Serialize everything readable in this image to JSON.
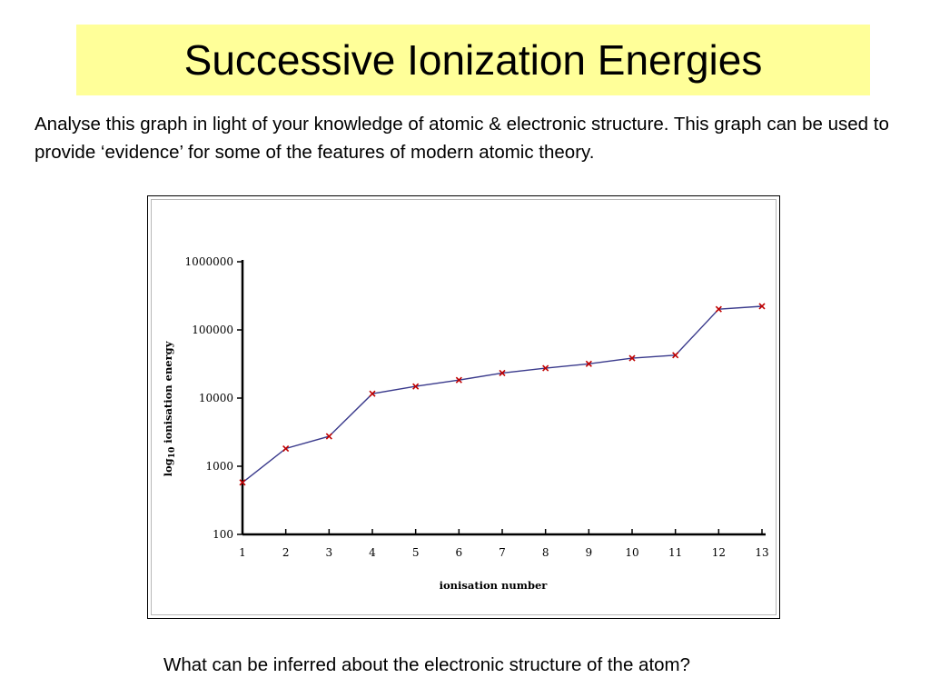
{
  "slide": {
    "title": "Successive Ionization Energies",
    "intro_text": "Analyse this graph in light of your knowledge of atomic & electronic structure. This graph can be used to provide ‘evidence’ for some of the features of modern atomic theory.",
    "question_text": "What can be inferred about the electronic structure of the atom?",
    "colors": {
      "title_background": "#ffff99",
      "line": "#3a3a8c",
      "marker": "#c00000"
    }
  },
  "chart_data": {
    "type": "line",
    "title": "",
    "xlabel": "ionisation number",
    "ylabel": "log₁₀ ionisation energy",
    "ylabel_parts": {
      "prefix": "log",
      "subscript": "10",
      "suffix": " ionisation energy"
    },
    "y_scale": "log",
    "ylim": [
      100,
      1000000
    ],
    "y_ticks": [
      100,
      1000,
      10000,
      100000,
      1000000
    ],
    "y_tick_labels": [
      "100",
      "1000",
      "10000",
      "100000",
      "1000000"
    ],
    "x": [
      1,
      2,
      3,
      4,
      5,
      6,
      7,
      8,
      9,
      10,
      11,
      12,
      13
    ],
    "x_tick_labels": [
      "1",
      "2",
      "3",
      "4",
      "5",
      "6",
      "7",
      "8",
      "9",
      "10",
      "11",
      "12",
      "13"
    ],
    "xlim": [
      1,
      13
    ],
    "grid": false,
    "legend": "none",
    "series": [
      {
        "values": [
          578,
          1817,
          2745,
          11577,
          14842,
          18379,
          23326,
          27465,
          31853,
          38473,
          42647,
          201266,
          222316
        ]
      }
    ]
  }
}
